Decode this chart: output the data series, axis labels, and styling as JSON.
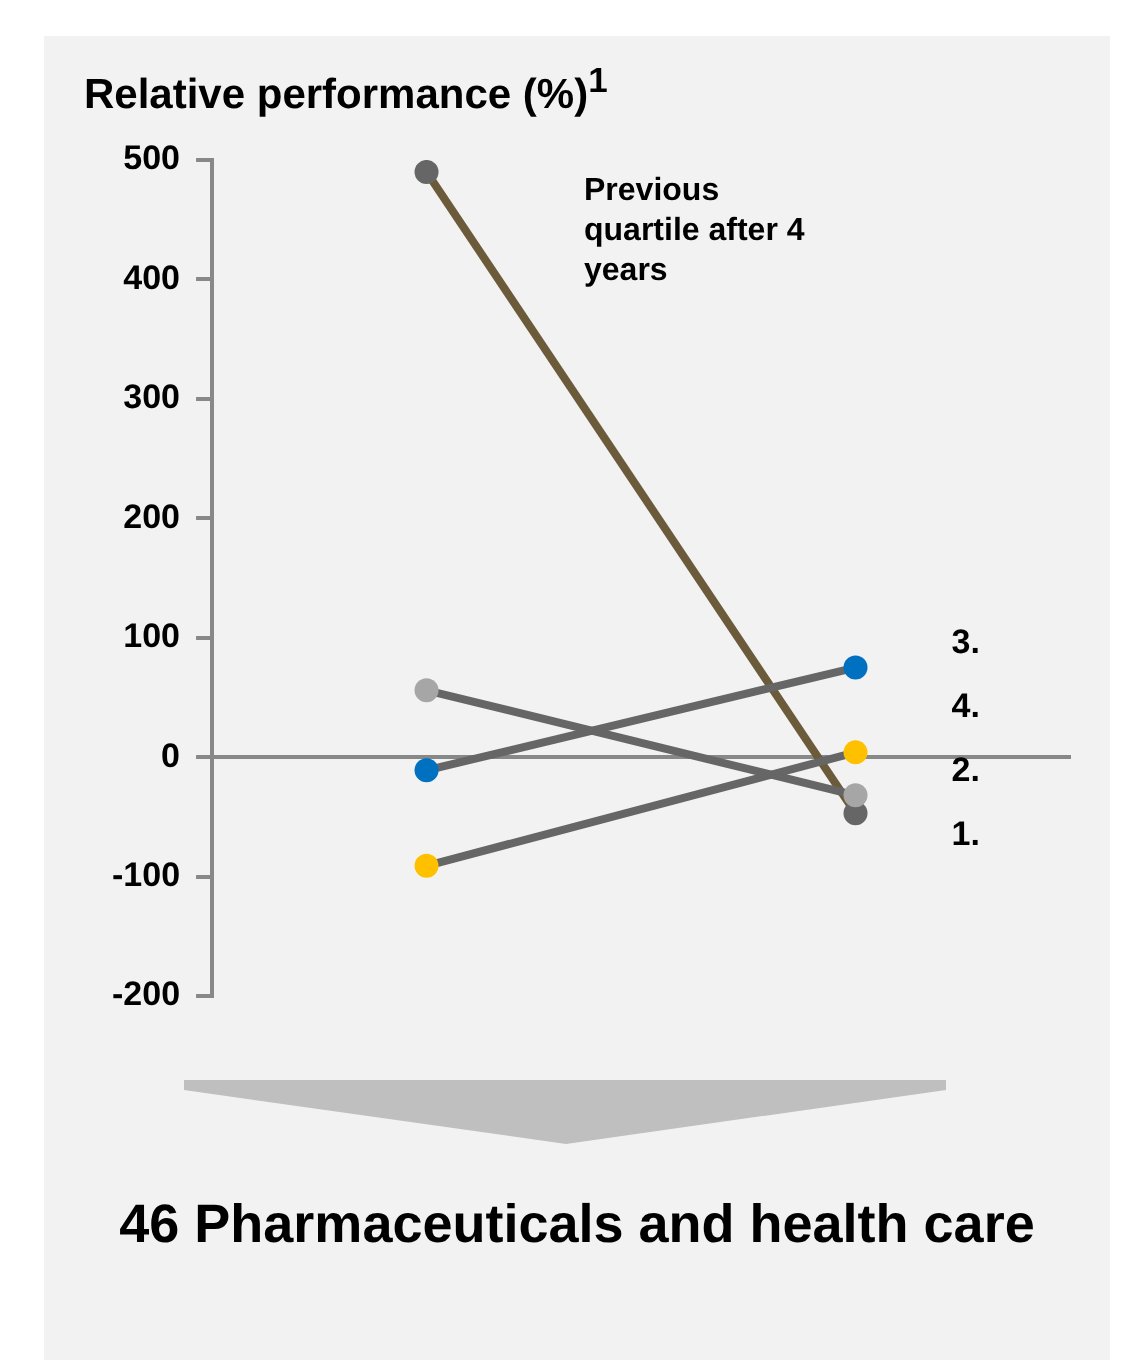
{
  "chart_data": {
    "type": "line",
    "title": "Relative performance (%)$^{1}$",
    "categories": [
      null,
      null
    ],
    "series": [
      {
        "name": "3.",
        "color": "#666666",
        "colors": [
          "#0070c0",
          "#0070c0"
        ],
        "values": [
          -11,
          75
        ]
      },
      {
        "name": "4.",
        "color": "#666666",
        "colors": [
          "#ffc000",
          "#ffc000"
        ],
        "values": [
          -91,
          4
        ]
      },
      {
        "name": "2.",
        "color": "#666666",
        "colors": [
          "#a6a6a6",
          "#a6a6a6"
        ],
        "values": [
          56,
          -32
        ]
      },
      {
        "name": "1.",
        "color": "#6b5b3b",
        "colors": [
          "#666666",
          "#666666"
        ],
        "values": [
          490,
          -47
        ]
      }
    ],
    "ylim": [
      -200,
      500
    ],
    "yticks": [
      -200,
      -100,
      0,
      100,
      200,
      300,
      400,
      500
    ],
    "marker": "circle",
    "annotations": [
      "Previous quartile after 4 years",
      "46 Pharmaceuticals and health care"
    ]
  }
}
